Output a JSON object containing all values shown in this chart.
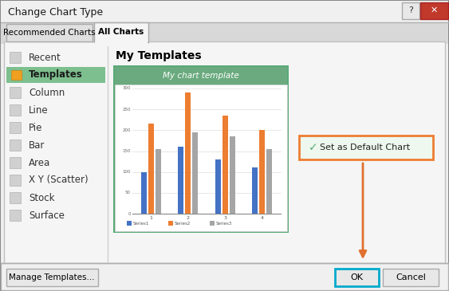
{
  "title": "Change Chart Type",
  "bg_color": "#f0f0f0",
  "tab_active": "All Charts",
  "tab_inactive": "Recommended Charts",
  "left_menu": [
    "Recent",
    "Templates",
    "Column",
    "Line",
    "Pie",
    "Bar",
    "Area",
    "X Y (Scatter)",
    "Stock",
    "Surface"
  ],
  "my_templates_label": "My Templates",
  "chart_title": "My chart template",
  "chart_border_color": "#5aaa78",
  "chart_header_bg": "#6aaa7e",
  "chart_inner_bg": "#ffffff",
  "series1": [
    100,
    160,
    130,
    110
  ],
  "series2": [
    215,
    290,
    235,
    200
  ],
  "series3": [
    155,
    195,
    185,
    155
  ],
  "series1_color": "#4472c4",
  "series2_color": "#ed7d31",
  "series3_color": "#a5a5a5",
  "categories": [
    "1",
    "2",
    "3",
    "4"
  ],
  "set_default_label": "Set as Default Chart",
  "set_default_border": "#ed7d31",
  "set_default_bg": "#eef8ee",
  "arrow_color": "#e07030",
  "ok_label": "OK",
  "cancel_label": "Cancel",
  "manage_label": "Manage Templates...",
  "templates_bg": "#7dbf8e",
  "titlebar_bg": "#f0f0f0",
  "tab_bg": "#ebebeb",
  "content_bg": "#f5f5f5",
  "border_color": "#b0b0b0",
  "separator_color": "#d0d0d0"
}
